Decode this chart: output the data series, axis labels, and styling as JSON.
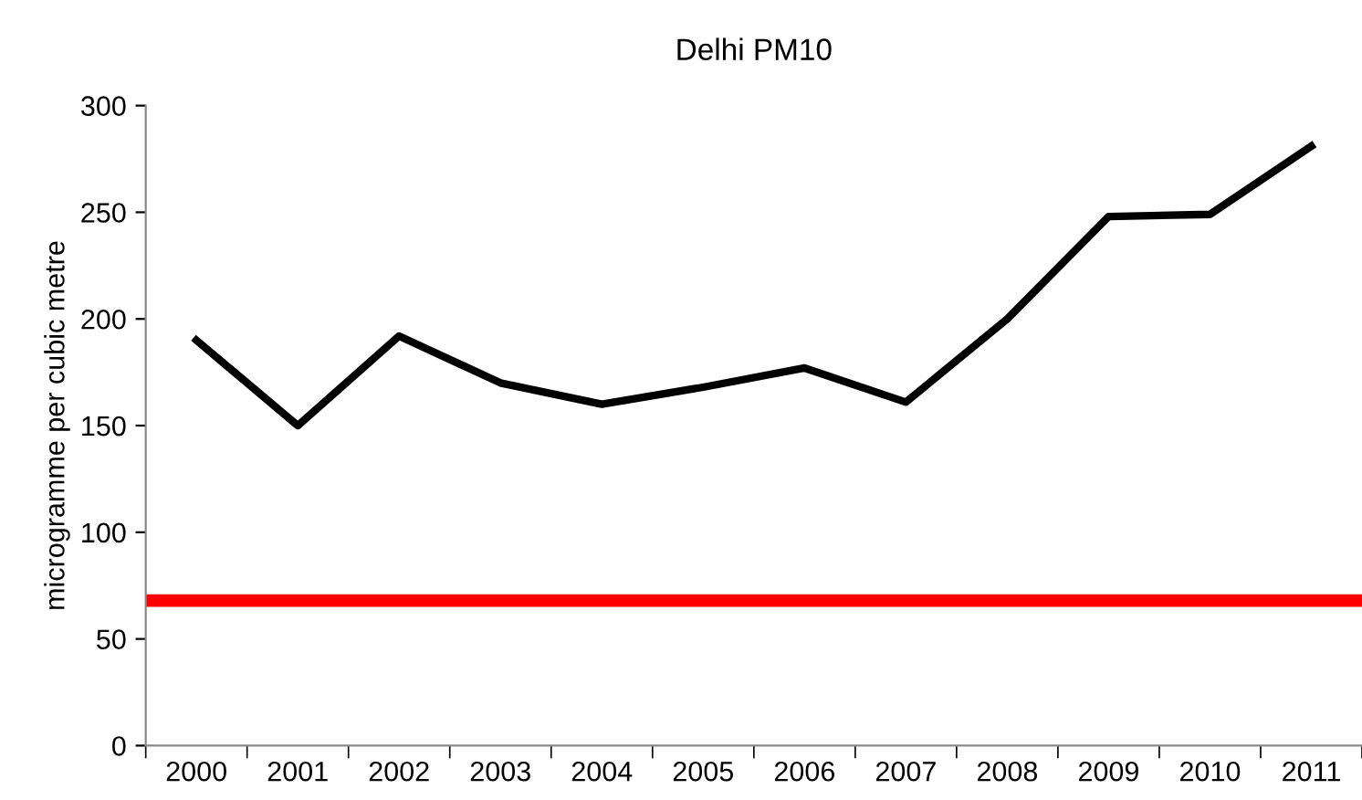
{
  "chart_data": {
    "type": "line",
    "title": "Delhi PM10",
    "ylabel": "microgramme per cubic metre",
    "categories": [
      "2000",
      "2001",
      "2002",
      "2003",
      "2004",
      "2005",
      "2006",
      "2007",
      "2008",
      "2009",
      "2010",
      "2011"
    ],
    "series": [
      {
        "color": "#000000",
        "values": [
          190,
          150,
          192,
          170,
          160,
          168,
          177,
          161,
          200,
          248,
          249,
          281
        ]
      }
    ],
    "ref_lines": [
      {
        "axis": "y",
        "value": 68,
        "color": "#ff0000"
      }
    ],
    "ylim": [
      0,
      300
    ],
    "yticks": [
      0,
      50,
      100,
      150,
      200,
      250,
      300
    ],
    "grid": false,
    "legend": false,
    "marker": "none",
    "line_style": "solid"
  }
}
